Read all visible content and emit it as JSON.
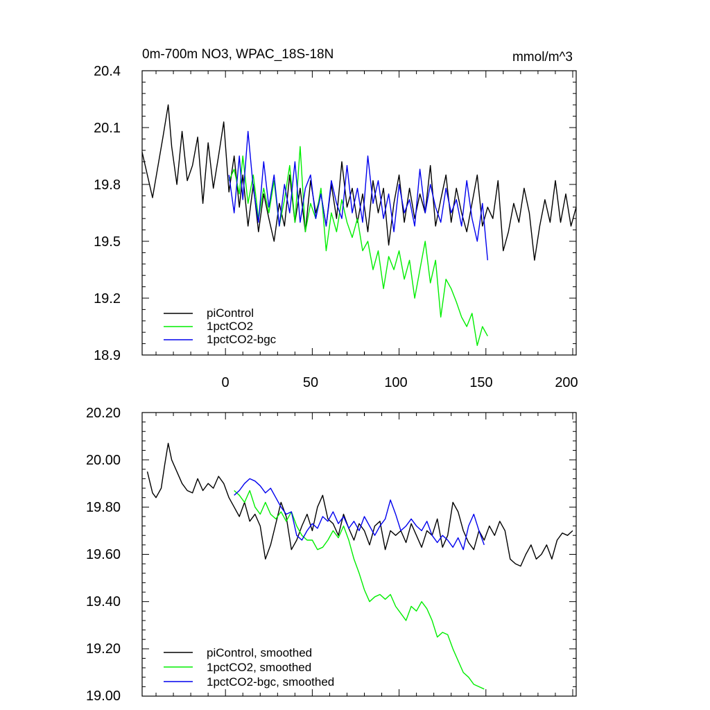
{
  "chart_data": [
    {
      "type": "line",
      "title": "0m-700m NO3, WPAC_18S-18N",
      "units": "mmol/m^3",
      "xlim": [
        -48,
        202
      ],
      "ylim": [
        18.9,
        20.4
      ],
      "xticks": [
        0,
        50,
        100,
        150,
        200
      ],
      "xtick_labels": [
        "0",
        "50",
        "100",
        "150",
        "200"
      ],
      "yticks": [
        18.9,
        19.2,
        19.5,
        19.8,
        20.1,
        20.4
      ],
      "ytick_labels": [
        "18.9",
        "19.2",
        "19.5",
        "19.8",
        "20.1",
        "20.4"
      ],
      "legend": "bottom-left",
      "series": [
        {
          "name": "piControl",
          "color": "#000000",
          "x": [
            -48,
            -42,
            -36,
            -33,
            -31,
            -28,
            -25,
            -22,
            -19,
            -16,
            -13,
            -10,
            -7,
            -4,
            -1,
            2,
            5,
            8,
            10,
            13,
            16,
            19,
            22,
            25,
            28,
            31,
            34,
            37,
            40,
            43,
            46,
            49,
            52,
            55,
            58,
            61,
            64,
            67,
            70,
            73,
            76,
            79,
            82,
            85,
            88,
            91,
            94,
            97,
            100,
            103,
            106,
            109,
            112,
            115,
            118,
            121,
            124,
            127,
            130,
            133,
            136,
            139,
            142,
            145,
            148,
            151,
            154,
            157,
            160,
            163,
            166,
            169,
            172,
            175,
            178,
            181,
            184,
            187,
            190,
            193,
            196,
            199,
            202
          ],
          "y": [
            19.97,
            19.73,
            20.05,
            20.22,
            20.0,
            19.8,
            20.08,
            19.82,
            19.9,
            20.05,
            19.7,
            20.02,
            19.78,
            19.95,
            20.13,
            19.76,
            19.95,
            19.68,
            19.85,
            19.58,
            19.8,
            19.55,
            19.75,
            19.62,
            19.5,
            19.7,
            19.58,
            19.85,
            19.6,
            19.78,
            19.55,
            19.82,
            19.65,
            19.75,
            19.58,
            19.8,
            19.62,
            19.92,
            19.68,
            19.78,
            19.6,
            19.75,
            19.55,
            19.82,
            19.65,
            19.78,
            19.48,
            19.7,
            19.85,
            19.6,
            19.78,
            19.62,
            19.75,
            19.65,
            19.9,
            19.58,
            19.72,
            19.85,
            19.6,
            19.78,
            19.65,
            19.55,
            19.7,
            19.85,
            19.58,
            19.68,
            19.62,
            19.82,
            19.45,
            19.55,
            19.7,
            19.6,
            19.78,
            19.65,
            19.4,
            19.58,
            19.72,
            19.6,
            19.82,
            19.6,
            19.75,
            19.58,
            19.68
          ]
        },
        {
          "name": "1pctCO2",
          "color": "#00ee00",
          "x": [
            2,
            5,
            8,
            10,
            13,
            16,
            19,
            22,
            25,
            28,
            31,
            34,
            37,
            40,
            43,
            46,
            49,
            52,
            55,
            58,
            61,
            64,
            67,
            70,
            73,
            76,
            79,
            82,
            85,
            88,
            91,
            94,
            97,
            100,
            103,
            106,
            109,
            112,
            115,
            118,
            121,
            124,
            127,
            130,
            133,
            136,
            139,
            142,
            145,
            148,
            151
          ],
          "y": [
            19.82,
            19.88,
            19.75,
            19.95,
            19.7,
            19.85,
            19.62,
            19.78,
            19.65,
            19.82,
            19.58,
            19.72,
            19.9,
            19.6,
            20.0,
            19.55,
            19.7,
            19.62,
            19.78,
            19.45,
            19.65,
            19.55,
            19.72,
            19.6,
            19.52,
            19.62,
            19.45,
            19.5,
            19.35,
            19.45,
            19.25,
            19.42,
            19.35,
            19.45,
            19.3,
            19.4,
            19.2,
            19.35,
            19.5,
            19.28,
            19.4,
            19.1,
            19.3,
            19.25,
            19.18,
            19.1,
            19.05,
            19.12,
            18.95,
            19.05,
            19.0
          ]
        },
        {
          "name": "1pctCO2-bgc",
          "color": "#0000ee",
          "x": [
            2,
            5,
            8,
            10,
            13,
            16,
            19,
            22,
            25,
            28,
            31,
            34,
            37,
            40,
            43,
            46,
            49,
            52,
            55,
            58,
            61,
            64,
            67,
            70,
            73,
            76,
            79,
            82,
            85,
            88,
            91,
            94,
            97,
            100,
            103,
            106,
            109,
            112,
            115,
            118,
            121,
            124,
            127,
            130,
            133,
            136,
            139,
            142,
            145,
            148,
            151
          ],
          "y": [
            19.85,
            19.65,
            19.95,
            19.72,
            20.08,
            19.78,
            19.6,
            19.92,
            19.68,
            19.85,
            19.58,
            19.8,
            19.65,
            19.92,
            19.6,
            19.78,
            19.85,
            19.62,
            19.75,
            19.58,
            19.82,
            19.7,
            19.62,
            19.9,
            19.65,
            19.78,
            19.6,
            19.95,
            19.7,
            19.82,
            19.62,
            19.75,
            19.55,
            19.8,
            19.65,
            19.72,
            19.58,
            19.88,
            19.65,
            19.8,
            19.68,
            19.6,
            19.78,
            19.65,
            19.72,
            19.58,
            19.82,
            19.62,
            19.5,
            19.7,
            19.4
          ]
        }
      ]
    },
    {
      "type": "line",
      "xlim": [
        -48,
        202
      ],
      "ylim": [
        19.0,
        20.2
      ],
      "xticks": [
        0,
        50,
        100,
        150,
        200
      ],
      "yticks": [
        19.0,
        19.2,
        19.4,
        19.6,
        19.8,
        20.0,
        20.2
      ],
      "ytick_labels": [
        "19.00",
        "19.20",
        "19.40",
        "19.60",
        "19.80",
        "20.00",
        "20.20"
      ],
      "legend": "bottom-left",
      "series": [
        {
          "name": "piControl, smoothed",
          "color": "#000000",
          "x": [
            -45,
            -42,
            -40,
            -37,
            -35,
            -33,
            -31,
            -28,
            -25,
            -22,
            -19,
            -16,
            -13,
            -10,
            -7,
            -4,
            -1,
            2,
            5,
            8,
            11,
            14,
            17,
            20,
            23,
            26,
            29,
            32,
            35,
            38,
            41,
            44,
            47,
            50,
            53,
            56,
            59,
            62,
            65,
            68,
            71,
            74,
            77,
            80,
            83,
            86,
            89,
            92,
            95,
            98,
            101,
            104,
            107,
            110,
            113,
            116,
            119,
            122,
            125,
            128,
            131,
            134,
            137,
            140,
            143,
            146,
            149,
            152,
            155,
            158,
            161,
            164,
            167,
            170,
            173,
            176,
            179,
            182,
            185,
            188,
            191,
            194,
            197,
            200
          ],
          "y": [
            19.95,
            19.86,
            19.84,
            19.88,
            19.98,
            20.07,
            20.0,
            19.95,
            19.9,
            19.87,
            19.86,
            19.92,
            19.87,
            19.9,
            19.88,
            19.93,
            19.9,
            19.84,
            19.8,
            19.76,
            19.82,
            19.74,
            19.77,
            19.72,
            19.58,
            19.64,
            19.73,
            19.82,
            19.76,
            19.62,
            19.66,
            19.72,
            19.77,
            19.7,
            19.8,
            19.85,
            19.75,
            19.73,
            19.68,
            19.77,
            19.71,
            19.66,
            19.73,
            19.7,
            19.64,
            19.72,
            19.74,
            19.62,
            19.7,
            19.68,
            19.7,
            19.65,
            19.73,
            19.68,
            19.63,
            19.7,
            19.68,
            19.75,
            19.63,
            19.68,
            19.82,
            19.78,
            19.7,
            19.65,
            19.62,
            19.7,
            19.66,
            19.72,
            19.68,
            19.74,
            19.7,
            19.58,
            19.56,
            19.55,
            19.6,
            19.64,
            19.58,
            19.6,
            19.64,
            19.58,
            19.66,
            19.69,
            19.68,
            19.7
          ]
        },
        {
          "name": "1pctCO2, smoothed",
          "color": "#00ee00",
          "x": [
            5,
            8,
            11,
            14,
            17,
            20,
            23,
            26,
            29,
            32,
            35,
            38,
            41,
            44,
            47,
            50,
            53,
            56,
            59,
            62,
            65,
            68,
            71,
            74,
            77,
            80,
            83,
            86,
            89,
            92,
            95,
            98,
            101,
            104,
            107,
            110,
            113,
            116,
            119,
            122,
            125,
            128,
            131,
            134,
            137,
            140,
            143,
            146,
            149
          ],
          "y": [
            19.87,
            19.85,
            19.82,
            19.87,
            19.8,
            19.77,
            19.82,
            19.77,
            19.75,
            19.78,
            19.74,
            19.78,
            19.72,
            19.68,
            19.66,
            19.66,
            19.62,
            19.63,
            19.66,
            19.7,
            19.67,
            19.72,
            19.66,
            19.58,
            19.52,
            19.45,
            19.4,
            19.42,
            19.43,
            19.41,
            19.43,
            19.38,
            19.35,
            19.32,
            19.38,
            19.36,
            19.4,
            19.37,
            19.32,
            19.25,
            19.27,
            19.26,
            19.2,
            19.15,
            19.1,
            19.08,
            19.05,
            19.04,
            19.03
          ]
        },
        {
          "name": "1pctCO2-bgc, smoothed",
          "color": "#0000ee",
          "x": [
            5,
            8,
            11,
            14,
            17,
            20,
            23,
            26,
            29,
            32,
            35,
            38,
            41,
            44,
            47,
            50,
            53,
            56,
            59,
            62,
            65,
            68,
            71,
            74,
            77,
            80,
            83,
            86,
            89,
            92,
            95,
            98,
            101,
            104,
            107,
            110,
            113,
            116,
            119,
            122,
            125,
            128,
            131,
            134,
            137,
            140,
            143,
            146,
            149
          ],
          "y": [
            19.85,
            19.87,
            19.9,
            19.92,
            19.91,
            19.89,
            19.86,
            19.88,
            19.84,
            19.8,
            19.77,
            19.78,
            19.68,
            19.66,
            19.7,
            19.73,
            19.71,
            19.76,
            19.74,
            19.78,
            19.73,
            19.76,
            19.71,
            19.74,
            19.7,
            19.76,
            19.72,
            19.68,
            19.72,
            19.75,
            19.83,
            19.77,
            19.7,
            19.72,
            19.75,
            19.72,
            19.7,
            19.74,
            19.68,
            19.65,
            19.68,
            19.66,
            19.63,
            19.67,
            19.62,
            19.72,
            19.77,
            19.7,
            19.64
          ]
        }
      ]
    }
  ]
}
